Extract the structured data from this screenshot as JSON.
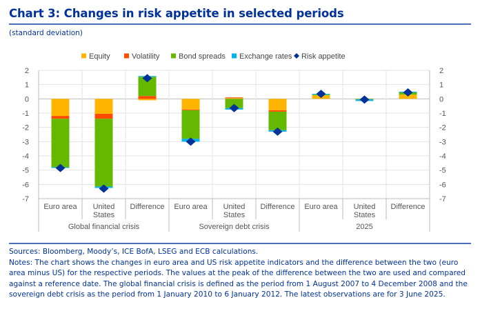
{
  "header": {
    "title": "Chart 3: Changes in risk appetite in selected periods",
    "subtitle": "(standard deviation)"
  },
  "chart_data": {
    "type": "bar",
    "stacked": true,
    "title": "Changes in risk appetite in selected periods",
    "ylabel": "standard deviation",
    "ylim": [
      -7,
      2
    ],
    "yticks": [
      2,
      1,
      0,
      -1,
      -2,
      -3,
      -4,
      -5,
      -6,
      -7
    ],
    "grid": true,
    "legend_position": "top-center",
    "groups": [
      {
        "label": "Global financial crisis",
        "categories": [
          "Euro area",
          "United States",
          "Difference"
        ]
      },
      {
        "label": "Sovereign debt crisis",
        "categories": [
          "Euro area",
          "United States",
          "Difference"
        ]
      },
      {
        "label": "2025",
        "categories": [
          "Euro area",
          "United States",
          "Difference"
        ]
      }
    ],
    "categories": [
      [
        "Euro area"
      ],
      [
        "United",
        "States"
      ],
      [
        "Difference"
      ],
      [
        "Euro area"
      ],
      [
        "United",
        "States"
      ],
      [
        "Difference"
      ],
      [
        "Euro area"
      ],
      [
        "United",
        "States"
      ],
      [
        "Difference"
      ]
    ],
    "series": [
      {
        "name": "Equity",
        "color": "#ffb400",
        "values": [
          -1.2,
          -1.05,
          -0.1,
          -0.75,
          0.05,
          -0.8,
          0.25,
          0.0,
          0.3
        ]
      },
      {
        "name": "Volatility",
        "color": "#ff4b00",
        "values": [
          -0.2,
          -0.35,
          0.2,
          -0.05,
          0.05,
          -0.1,
          0.0,
          0.0,
          0.0
        ]
      },
      {
        "name": "Bond spreads",
        "color": "#65b800",
        "values": [
          -3.4,
          -4.75,
          1.35,
          -2.0,
          -0.65,
          -1.3,
          0.05,
          -0.05,
          0.15
        ]
      },
      {
        "name": "Exchange rates",
        "color": "#00b1ea",
        "values": [
          -0.05,
          -0.1,
          0.05,
          -0.2,
          -0.1,
          -0.1,
          0.05,
          -0.1,
          0.05
        ]
      }
    ],
    "risk_appetite": {
      "name": "Risk appetite",
      "color": "#003299",
      "values": [
        -4.85,
        -6.3,
        1.45,
        -3.0,
        -0.65,
        -2.3,
        0.35,
        -0.05,
        0.45
      ]
    }
  },
  "notes": {
    "sources": "Sources: Bloomberg, Moody’s, ICE BofA, LSEG and ECB calculations.",
    "notes": "Notes: The chart shows the changes in euro area and US risk appetite indicators and the difference between the two (euro area minus US) for the respective periods. The values at the peak of the difference between the two are used and compared against a reference date. The global financial crisis is defined as the period from 1 August 2007 to 4 December 2008 and the sovereign debt crisis as the period from 1 January 2010 to 6 January 2012. The latest observations are for 3 June 2025."
  }
}
